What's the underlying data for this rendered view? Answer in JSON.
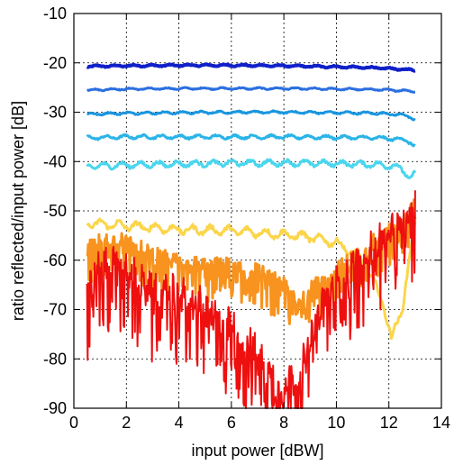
{
  "chart_data": {
    "type": "line",
    "xlabel": "input power [dBW]",
    "ylabel": "ratio reflected/input power [dB]",
    "xlim": [
      0,
      14
    ],
    "ylim": [
      -90,
      -10
    ],
    "xticks": [
      0,
      2,
      4,
      6,
      8,
      10,
      12,
      14
    ],
    "yticks": [
      -90,
      -80,
      -70,
      -60,
      -50,
      -40,
      -30,
      -20,
      -10
    ],
    "grid": true,
    "legend": "none",
    "series": [
      {
        "color": "#1020c8",
        "width": 4,
        "noise": 0.3,
        "x": [
          0.5,
          2,
          4,
          6,
          8,
          10,
          11.5,
          12.5,
          13.0
        ],
        "y": [
          -20.7,
          -20.6,
          -20.5,
          -20.5,
          -20.6,
          -20.8,
          -21.0,
          -21.3,
          -21.5
        ]
      },
      {
        "color": "#2b6fe0",
        "width": 3,
        "noise": 0.3,
        "x": [
          0.5,
          2,
          4,
          6,
          8,
          10,
          11.5,
          12.5,
          13.0
        ],
        "y": [
          -25.5,
          -25.3,
          -25.2,
          -25.2,
          -25.2,
          -25.3,
          -25.4,
          -25.6,
          -25.8
        ]
      },
      {
        "color": "#1a96e0",
        "width": 3,
        "noise": 0.4,
        "x": [
          0.5,
          2,
          4,
          6,
          8,
          10,
          11.5,
          12.5,
          12.8,
          13.0
        ],
        "y": [
          -30.4,
          -30.2,
          -30.1,
          -30.0,
          -30.0,
          -30.1,
          -30.2,
          -30.5,
          -31.0,
          -31.5
        ]
      },
      {
        "color": "#2ab4e8",
        "width": 3,
        "noise": 0.6,
        "x": [
          0.5,
          2,
          4,
          6,
          8,
          10,
          11.5,
          12.5,
          12.8,
          13.0
        ],
        "y": [
          -35.2,
          -35.0,
          -35.0,
          -35.0,
          -35.0,
          -35.1,
          -35.2,
          -35.5,
          -36.0,
          -37.0
        ]
      },
      {
        "color": "#4ad6ee",
        "width": 3,
        "noise": 1.0,
        "x": [
          0.5,
          2,
          4,
          6,
          8,
          10,
          11.5,
          12.3,
          12.6,
          12.8,
          13.0
        ],
        "y": [
          -41.0,
          -40.7,
          -40.5,
          -40.3,
          -40.3,
          -40.4,
          -40.6,
          -41.0,
          -42.0,
          -43.5,
          -42.5
        ]
      },
      {
        "color": "#fbd54a",
        "width": 3,
        "noise": 1.5,
        "x": [
          0.5,
          2,
          4,
          6,
          8,
          9,
          10,
          10.8,
          11.3,
          11.8,
          12.1,
          12.5,
          12.8,
          13.0
        ],
        "y": [
          -52.5,
          -53,
          -53.8,
          -54,
          -54.8,
          -55.3,
          -56.5,
          -59,
          -63,
          -69,
          -76,
          -70,
          -59,
          -53
        ]
      },
      {
        "color": "#f7931e",
        "width": 3,
        "noise": 3,
        "x": [
          0.5,
          1,
          2,
          3,
          4,
          5,
          6,
          7,
          8,
          8.5,
          9,
          10,
          11,
          12,
          13
        ],
        "y": [
          -59,
          -57,
          -57,
          -60,
          -61,
          -62,
          -62,
          -63,
          -66,
          -69,
          -67,
          -63,
          -59,
          -55,
          -50
        ]
      },
      {
        "color": "#ee0f0f",
        "width": 2,
        "noise": 6,
        "x": [
          0.5,
          1,
          2,
          3,
          4,
          5,
          6,
          7,
          7.5,
          8,
          8.5,
          9,
          9.5,
          10,
          11,
          12,
          13
        ],
        "y": [
          -68,
          -62,
          -63,
          -68,
          -68,
          -71,
          -75,
          -80,
          -84,
          -86,
          -86,
          -78,
          -70,
          -66,
          -61,
          -56,
          -51
        ]
      }
    ]
  }
}
